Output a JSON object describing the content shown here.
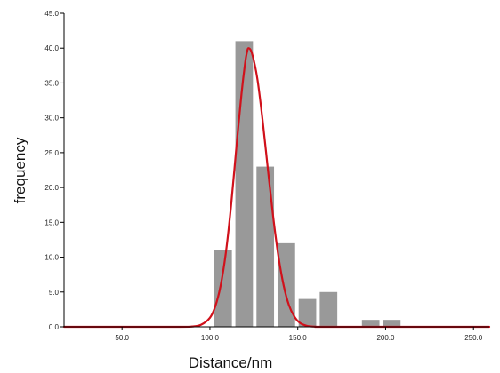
{
  "chart_data": {
    "type": "bar",
    "title": "",
    "xlabel": "Distance/nm",
    "ylabel": "frequency",
    "xlim": [
      17,
      259
    ],
    "ylim": [
      0,
      45
    ],
    "bin_width": 10,
    "x_ticks": [
      50,
      100,
      150,
      200,
      250
    ],
    "x_tick_labels": [
      "50.0",
      "100.0",
      "150.0",
      "200.0",
      "250.0"
    ],
    "y_ticks": [
      0,
      5,
      10,
      15,
      20,
      25,
      30,
      35,
      40,
      45
    ],
    "y_tick_labels": [
      "0.0",
      "5.0",
      "10.0",
      "15.0",
      "20.0",
      "25.0",
      "30.0",
      "35.0",
      "40.0",
      "45.0"
    ],
    "series": [
      {
        "type": "bar",
        "x": [
          107.5,
          119.5,
          131.5,
          143.5,
          155.5,
          167.5,
          191.5,
          203.5
        ],
        "values": [
          11,
          41,
          23,
          12,
          4,
          5,
          1,
          1
        ]
      },
      {
        "type": "line",
        "x": [
          17,
          80,
          90,
          95,
          100,
          103,
          106,
          109,
          112,
          115,
          118,
          120,
          121,
          122,
          124,
          127,
          130,
          133,
          136,
          139,
          142,
          145,
          148,
          151,
          155,
          160,
          170,
          259
        ],
        "values": [
          0,
          0,
          0.05,
          0.3,
          1.3,
          2.9,
          5.8,
          10.5,
          17.3,
          25.6,
          33.5,
          37.8,
          39.3,
          40.0,
          39.2,
          35.6,
          29.6,
          22.6,
          15.8,
          10.1,
          5.9,
          3.1,
          1.5,
          0.6,
          0.15,
          0.02,
          0,
          0
        ]
      }
    ],
    "colors": {
      "bars": "#999999",
      "curve": "#d0111b",
      "axis": "#000000"
    },
    "grid": false,
    "legend": "none"
  }
}
